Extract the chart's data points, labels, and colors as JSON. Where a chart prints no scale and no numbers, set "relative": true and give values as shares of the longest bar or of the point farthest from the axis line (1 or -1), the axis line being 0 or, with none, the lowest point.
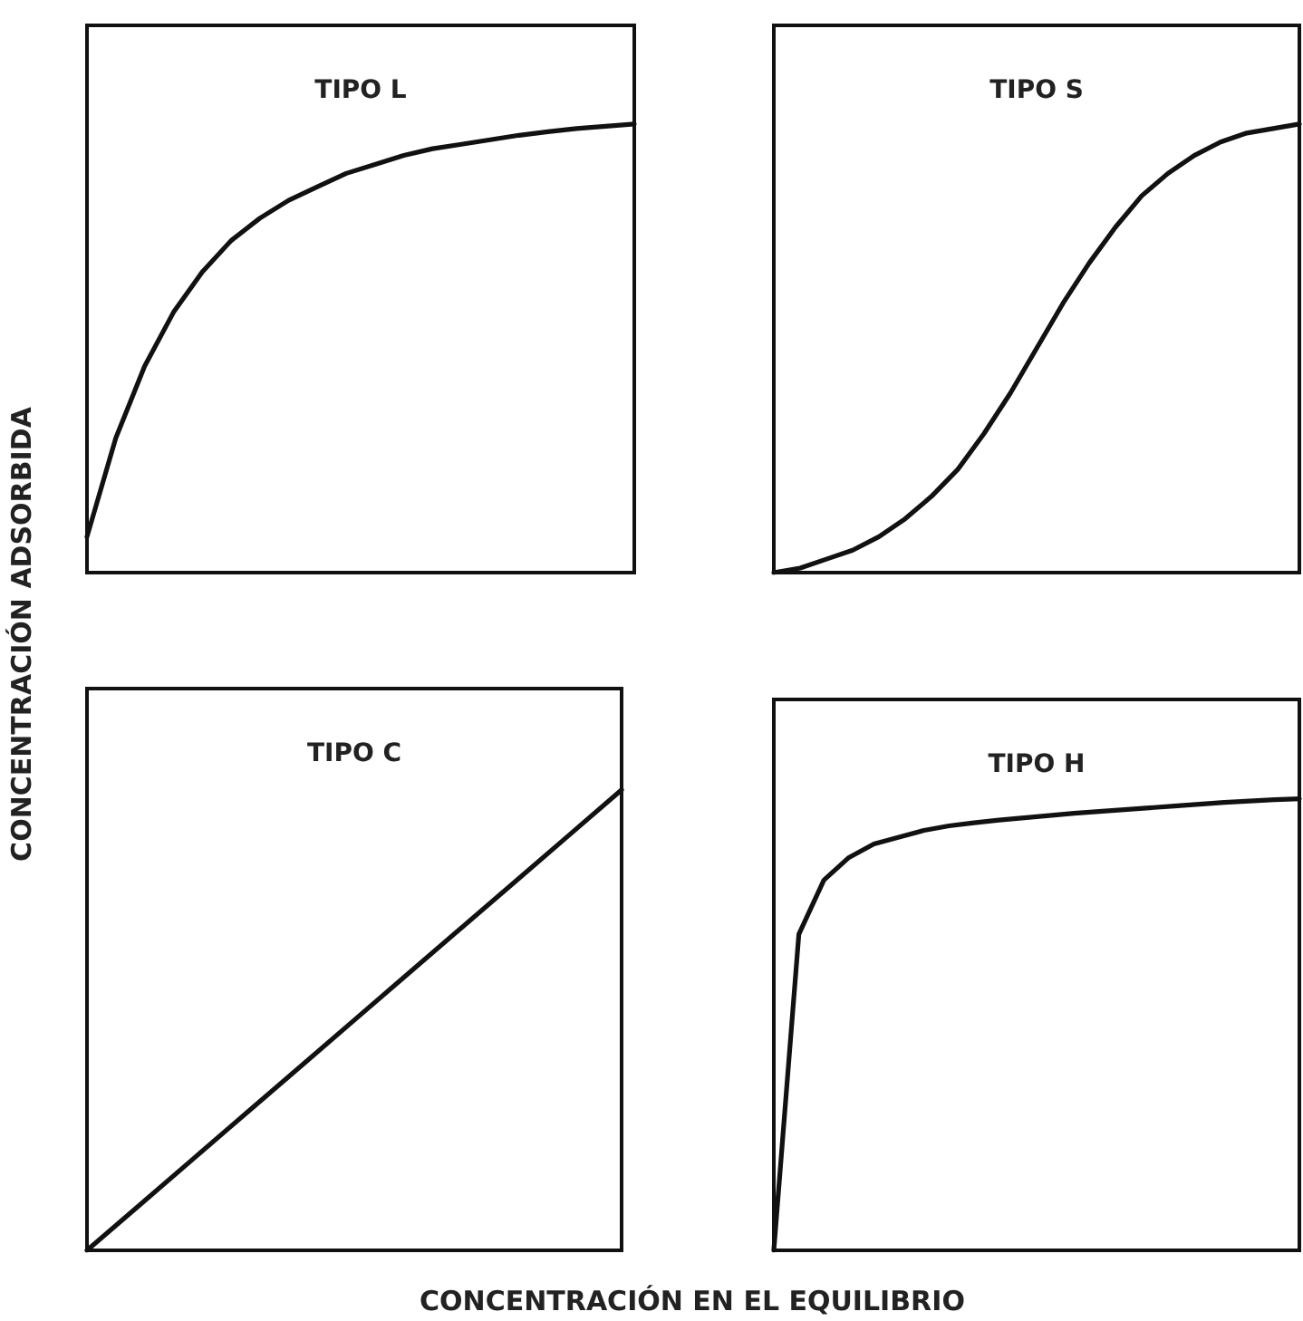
{
  "chart_data": [
    {
      "type": "line",
      "title": "TIPO L",
      "ylabel": "CONCENTRACIÓN ADSORBIDA",
      "relative": true,
      "marker": "none",
      "categories": [
        null,
        null,
        null,
        null,
        null,
        null,
        null,
        null,
        null,
        null,
        null,
        null,
        null,
        null,
        null,
        null,
        null,
        null,
        null,
        null
      ],
      "series": [
        {
          "color": "#111111",
          "values": [
            0.08,
            0.3,
            0.46,
            0.58,
            0.67,
            0.74,
            0.79,
            0.83,
            0.86,
            0.89,
            0.91,
            0.93,
            0.945,
            0.955,
            0.965,
            0.975,
            0.983,
            0.99,
            0.995,
            1.0
          ]
        }
      ]
    },
    {
      "type": "line",
      "title": "TIPO S",
      "relative": true,
      "marker": "none",
      "categories": [
        null,
        null,
        null,
        null,
        null,
        null,
        null,
        null,
        null,
        null,
        null,
        null,
        null,
        null,
        null,
        null,
        null,
        null,
        null,
        null,
        null
      ],
      "series": [
        {
          "color": "#111111",
          "values": [
            0,
            0.01,
            0.03,
            0.05,
            0.08,
            0.12,
            0.17,
            0.23,
            0.31,
            0.4,
            0.5,
            0.6,
            0.69,
            0.77,
            0.84,
            0.89,
            0.93,
            0.96,
            0.98,
            0.99,
            1.0
          ]
        }
      ]
    },
    {
      "type": "line",
      "title": "TIPO C",
      "xlabel": "CONCENTRACIÓN EN EL EQUILIBRIO",
      "relative": true,
      "marker": "none",
      "categories": [
        null,
        null,
        null,
        null,
        null,
        null,
        null,
        null,
        null,
        null,
        null
      ],
      "series": [
        {
          "color": "#111111",
          "values": [
            0,
            0.1,
            0.2,
            0.3,
            0.4,
            0.5,
            0.6,
            0.7,
            0.8,
            0.9,
            1.0
          ]
        }
      ]
    },
    {
      "type": "line",
      "title": "TIPO H",
      "relative": true,
      "marker": "none",
      "categories": [
        null,
        null,
        null,
        null,
        null,
        null,
        null,
        null,
        null,
        null,
        null,
        null,
        null,
        null,
        null,
        null,
        null,
        null,
        null,
        null,
        null,
        null
      ],
      "series": [
        {
          "color": "#111111",
          "values": [
            0,
            0.7,
            0.82,
            0.87,
            0.9,
            0.915,
            0.93,
            0.94,
            0.947,
            0.953,
            0.958,
            0.963,
            0.968,
            0.972,
            0.976,
            0.98,
            0.984,
            0.988,
            0.992,
            0.995,
            0.998,
            1.0
          ]
        }
      ]
    }
  ]
}
